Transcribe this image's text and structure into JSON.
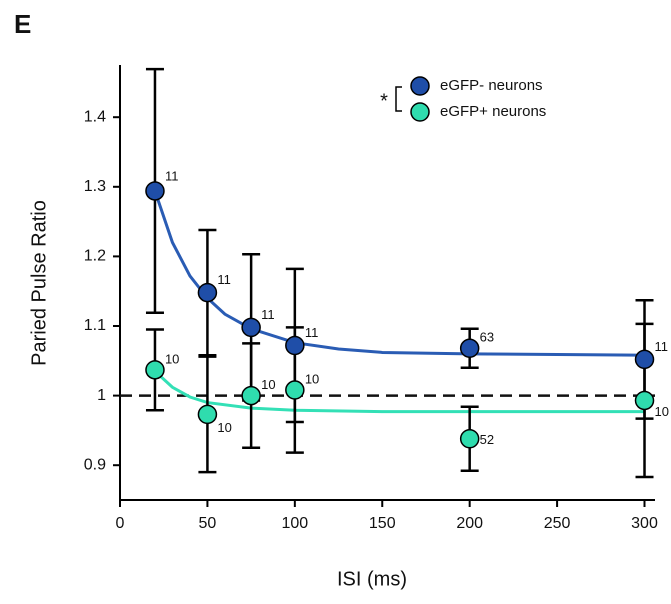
{
  "chart_data": {
    "type": "scatter",
    "panel_label": "E",
    "x_label": "ISI (ms)",
    "y_label": "Paried Pulse Ratio",
    "xlim": [
      0,
      306
    ],
    "ylim": [
      0.85,
      1.475
    ],
    "xticks": [
      0,
      50,
      100,
      150,
      200,
      250,
      300
    ],
    "yticks": [
      0.9,
      1,
      1.1,
      1.2,
      1.3,
      1.4
    ],
    "reference_line": 1,
    "significance": "*",
    "x": [
      20,
      50,
      75,
      100,
      200,
      300
    ],
    "series": [
      {
        "name": "eGFP- neurons",
        "color": "#1f4ea8",
        "fit_color": "#2a5cb4",
        "values": [
          1.294,
          1.148,
          1.098,
          1.072,
          1.068,
          1.052
        ],
        "errors": [
          0.175,
          0.09,
          0.105,
          0.11,
          0.028,
          0.085
        ],
        "n": [
          11,
          11,
          11,
          11,
          63,
          11
        ],
        "fit_x": [
          20,
          30,
          40,
          50,
          60,
          75,
          100,
          125,
          150,
          200,
          250,
          300
        ],
        "fit_y": [
          1.294,
          1.22,
          1.172,
          1.14,
          1.117,
          1.096,
          1.076,
          1.067,
          1.062,
          1.06,
          1.059,
          1.058
        ]
      },
      {
        "name": "eGFP+ neurons",
        "color": "#2fdcae",
        "fit_color": "#33e0b6",
        "values": [
          1.037,
          0.973,
          1.0,
          1.008,
          0.938,
          0.993
        ],
        "errors": [
          0.058,
          0.083,
          0.075,
          0.09,
          0.046,
          0.11
        ],
        "n": [
          10,
          10,
          10,
          10,
          52,
          10
        ],
        "fit_x": [
          20,
          30,
          40,
          50,
          75,
          100,
          150,
          200,
          300
        ],
        "fit_y": [
          1.035,
          1.012,
          0.998,
          0.99,
          0.982,
          0.979,
          0.977,
          0.977,
          0.977
        ]
      }
    ]
  }
}
